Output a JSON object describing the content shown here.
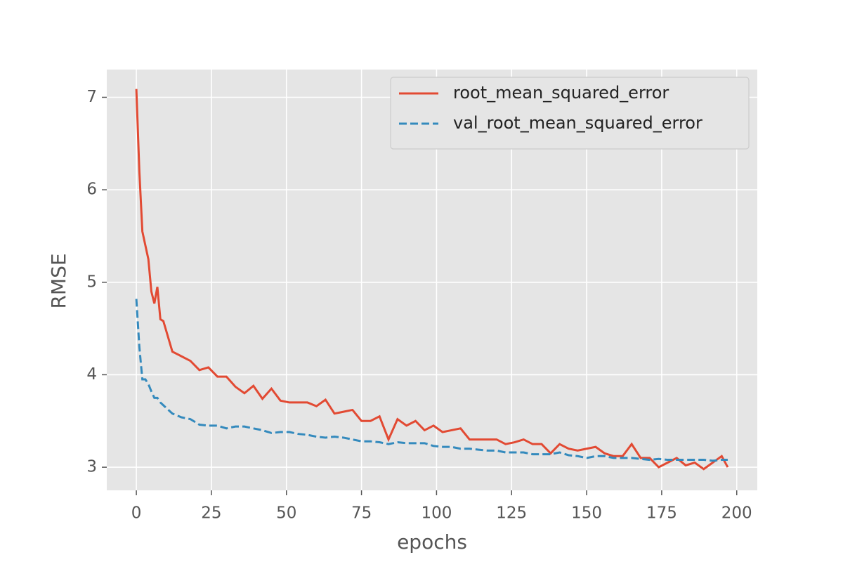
{
  "chart_data": {
    "type": "line",
    "xlabel": "epochs",
    "ylabel": "RMSE",
    "x": [
      0,
      1,
      2,
      3,
      4,
      5,
      6,
      7,
      8,
      9,
      12,
      15,
      18,
      21,
      24,
      27,
      30,
      33,
      36,
      39,
      42,
      45,
      48,
      51,
      54,
      57,
      60,
      63,
      66,
      69,
      72,
      75,
      78,
      81,
      84,
      87,
      90,
      93,
      96,
      99,
      102,
      105,
      108,
      111,
      114,
      117,
      120,
      123,
      126,
      129,
      132,
      135,
      138,
      141,
      144,
      147,
      150,
      153,
      156,
      159,
      162,
      165,
      168,
      171,
      174,
      177,
      180,
      183,
      186,
      189,
      192,
      195,
      197
    ],
    "series": [
      {
        "name": "root_mean_squared_error",
        "color": "#E24A33",
        "dash": false,
        "values": [
          7.09,
          6.2,
          5.55,
          5.4,
          5.25,
          4.9,
          4.77,
          4.95,
          4.6,
          4.58,
          4.25,
          4.2,
          4.15,
          4.05,
          4.08,
          3.98,
          3.98,
          3.87,
          3.8,
          3.88,
          3.74,
          3.85,
          3.72,
          3.7,
          3.7,
          3.7,
          3.66,
          3.73,
          3.58,
          3.6,
          3.62,
          3.5,
          3.5,
          3.55,
          3.3,
          3.52,
          3.45,
          3.5,
          3.4,
          3.45,
          3.38,
          3.4,
          3.42,
          3.3,
          3.3,
          3.3,
          3.3,
          3.25,
          3.27,
          3.3,
          3.25,
          3.25,
          3.15,
          3.25,
          3.2,
          3.18,
          3.2,
          3.22,
          3.15,
          3.12,
          3.12,
          3.25,
          3.1,
          3.1,
          3.0,
          3.05,
          3.1,
          3.02,
          3.05,
          2.98,
          3.05,
          3.12,
          3.0
        ]
      },
      {
        "name": "val_root_mean_squared_error",
        "color": "#348ABD",
        "dash": true,
        "values": [
          4.82,
          4.3,
          3.95,
          3.95,
          3.9,
          3.82,
          3.75,
          3.75,
          3.7,
          3.67,
          3.58,
          3.54,
          3.52,
          3.46,
          3.45,
          3.45,
          3.42,
          3.44,
          3.44,
          3.42,
          3.4,
          3.37,
          3.38,
          3.38,
          3.36,
          3.35,
          3.33,
          3.32,
          3.33,
          3.32,
          3.3,
          3.28,
          3.28,
          3.27,
          3.25,
          3.27,
          3.26,
          3.26,
          3.26,
          3.23,
          3.22,
          3.22,
          3.2,
          3.2,
          3.19,
          3.18,
          3.18,
          3.16,
          3.16,
          3.16,
          3.14,
          3.14,
          3.14,
          3.16,
          3.13,
          3.12,
          3.1,
          3.12,
          3.12,
          3.1,
          3.1,
          3.1,
          3.09,
          3.08,
          3.09,
          3.08,
          3.08,
          3.08,
          3.08,
          3.08,
          3.07,
          3.08,
          3.08
        ]
      }
    ],
    "xlim": [
      -9.85,
      206.85
    ],
    "ylim": [
      2.75,
      7.3
    ],
    "xticks": [
      0,
      25,
      50,
      75,
      100,
      125,
      150,
      175,
      200
    ],
    "yticks": [
      3,
      4,
      5,
      6,
      7
    ],
    "grid": true,
    "legend": "upper right"
  }
}
